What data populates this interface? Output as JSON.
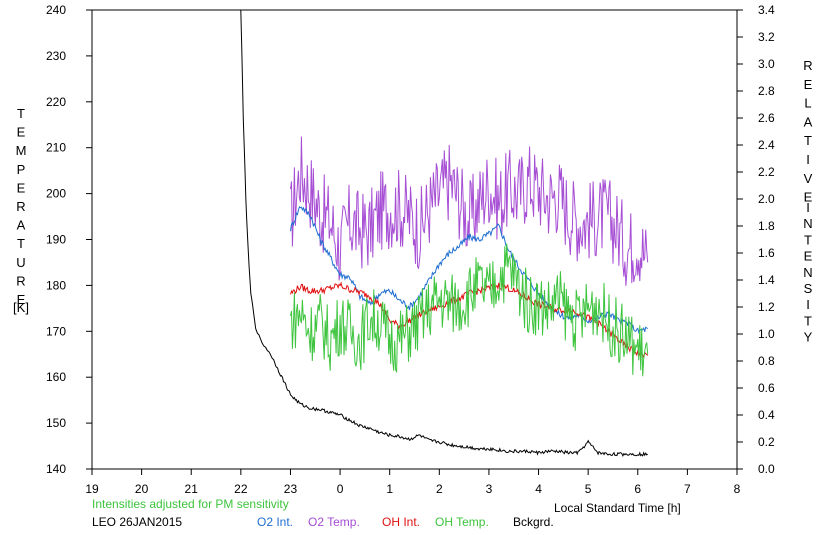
{
  "chart_data": {
    "type": "line",
    "title": "",
    "y_left": {
      "label_letters": [
        "T",
        "E",
        "M",
        "P",
        "E",
        "R",
        "A",
        "T",
        "U",
        "R",
        "E"
      ],
      "unit": "[K]",
      "range": [
        140,
        240
      ],
      "ticks": [
        "140",
        "150",
        "160",
        "170",
        "180",
        "190",
        "200",
        "210",
        "220",
        "230",
        "240"
      ]
    },
    "y_right": {
      "label_letters_1": [
        "R",
        "E",
        "L",
        "A",
        "T",
        "I",
        "V",
        "E"
      ],
      "label_letters_2": [
        "I",
        "N",
        "T",
        "E",
        "N",
        "S",
        "I",
        "T",
        "Y"
      ],
      "range": [
        0.0,
        3.4
      ],
      "ticks": [
        "0.0",
        "0.2",
        "0.4",
        "0.6",
        "0.8",
        "1.0",
        "1.2",
        "1.4",
        "1.6",
        "1.8",
        "2.0",
        "2.2",
        "2.4",
        "2.6",
        "2.8",
        "3.0",
        "3.2",
        "3.4"
      ]
    },
    "x_axis": {
      "label": "Local Standard Time [h]",
      "range": [
        19,
        32
      ],
      "ticks": [
        "19",
        "20",
        "21",
        "22",
        "23",
        "0",
        "1",
        "2",
        "3",
        "4",
        "5",
        "6",
        "7",
        "8"
      ]
    },
    "note": "Intensities adjusted for PM sensitivity",
    "station": "LEO 26JAN2015",
    "legend": [
      {
        "name": "O2 Int.",
        "color": "#1f6fd0"
      },
      {
        "name": "O2 Temp.",
        "color": "#a64ed4"
      },
      {
        "name": "OH Int.",
        "color": "#e01010"
      },
      {
        "name": "OH Temp.",
        "color": "#3ec43e"
      },
      {
        "name": "Bckgrd.",
        "color": "#000000"
      }
    ],
    "series": [
      {
        "name": "O2 Temp.",
        "axis": "left",
        "color": "#a64ed4",
        "x": [
          23.0,
          23.2,
          23.4,
          23.6,
          23.8,
          24.0,
          24.2,
          24.4,
          24.6,
          24.8,
          25.0,
          25.2,
          25.4,
          25.6,
          25.8,
          26.0,
          26.2,
          26.4,
          26.6,
          26.8,
          27.0,
          27.2,
          27.4,
          27.6,
          27.8,
          28.0,
          28.2,
          28.4,
          28.6,
          28.8,
          29.0,
          29.2,
          29.4,
          29.6,
          29.8,
          30.0,
          30.2
        ],
        "y": [
          194,
          205,
          201,
          196,
          194,
          188,
          194,
          192,
          192,
          196,
          197,
          197,
          195,
          192,
          197,
          200,
          203,
          199,
          194,
          198,
          202,
          198,
          201,
          200,
          203,
          201,
          199,
          200,
          196,
          194,
          194,
          195,
          195,
          192,
          188,
          190,
          185
        ]
      },
      {
        "name": "O2 Int.",
        "axis": "right",
        "color": "#1f6fd0",
        "x": [
          23.0,
          23.2,
          23.4,
          23.6,
          23.8,
          24.0,
          24.2,
          24.4,
          24.6,
          24.8,
          25.0,
          25.2,
          25.4,
          25.6,
          25.8,
          26.0,
          26.2,
          26.4,
          26.6,
          26.8,
          27.0,
          27.2,
          27.4,
          27.6,
          27.8,
          28.0,
          28.2,
          28.4,
          28.6,
          28.8,
          29.0,
          29.2,
          29.4,
          29.6,
          29.8,
          30.0,
          30.2
        ],
        "y": [
          1.78,
          1.95,
          1.88,
          1.7,
          1.57,
          1.44,
          1.42,
          1.28,
          1.22,
          1.3,
          1.32,
          1.25,
          1.2,
          1.28,
          1.4,
          1.52,
          1.6,
          1.65,
          1.72,
          1.7,
          1.74,
          1.8,
          1.62,
          1.5,
          1.4,
          1.3,
          1.22,
          1.15,
          1.12,
          1.14,
          1.1,
          1.12,
          1.16,
          1.1,
          1.08,
          1.02,
          1.04
        ]
      },
      {
        "name": "OH Int.",
        "axis": "right",
        "color": "#e01010",
        "x": [
          23.0,
          23.2,
          23.4,
          23.6,
          23.8,
          24.0,
          24.2,
          24.4,
          24.6,
          24.8,
          25.0,
          25.2,
          25.4,
          25.6,
          25.8,
          26.0,
          26.2,
          26.4,
          26.6,
          26.8,
          27.0,
          27.2,
          27.4,
          27.6,
          27.8,
          28.0,
          28.2,
          28.4,
          28.6,
          28.8,
          29.0,
          29.2,
          29.4,
          29.6,
          29.8,
          30.0,
          30.2
        ],
        "y": [
          1.3,
          1.35,
          1.32,
          1.32,
          1.34,
          1.36,
          1.33,
          1.31,
          1.28,
          1.22,
          1.1,
          1.06,
          1.1,
          1.14,
          1.18,
          1.2,
          1.24,
          1.26,
          1.3,
          1.32,
          1.34,
          1.36,
          1.34,
          1.3,
          1.26,
          1.22,
          1.2,
          1.18,
          1.18,
          1.16,
          1.12,
          1.08,
          1.02,
          0.96,
          0.9,
          0.86,
          0.84
        ]
      },
      {
        "name": "OH Temp.",
        "axis": "left",
        "color": "#3ec43e",
        "x": [
          23.0,
          23.2,
          23.4,
          23.6,
          23.8,
          24.0,
          24.2,
          24.4,
          24.6,
          24.8,
          25.0,
          25.2,
          25.4,
          25.6,
          25.8,
          26.0,
          26.2,
          26.4,
          26.6,
          26.8,
          27.0,
          27.2,
          27.4,
          27.6,
          27.8,
          28.0,
          28.2,
          28.4,
          28.6,
          28.8,
          29.0,
          29.2,
          29.4,
          29.6,
          29.8,
          30.0,
          30.2
        ],
        "y": [
          172,
          174,
          170,
          172,
          168,
          172,
          170,
          168,
          173,
          172,
          168,
          168,
          170,
          172,
          175,
          177,
          176,
          176,
          178,
          180,
          178,
          182,
          184,
          180,
          176,
          176,
          175,
          177,
          174,
          172,
          175,
          176,
          172,
          170,
          168,
          166,
          165
        ]
      },
      {
        "name": "Bckgrd.",
        "axis": "right",
        "color": "#000000",
        "x": [
          22.0,
          22.05,
          22.1,
          22.15,
          22.2,
          22.3,
          22.4,
          22.5,
          22.6,
          22.8,
          23.0,
          23.2,
          23.4,
          23.6,
          23.8,
          24.0,
          24.2,
          24.4,
          24.6,
          24.8,
          25.0,
          25.2,
          25.4,
          25.6,
          25.8,
          26.0,
          26.2,
          26.4,
          26.6,
          26.8,
          27.0,
          27.2,
          27.4,
          27.6,
          27.8,
          28.0,
          28.2,
          28.4,
          28.6,
          28.8,
          29.0,
          29.2,
          29.4,
          29.6,
          29.8,
          30.0,
          30.2
        ],
        "y": [
          3.4,
          2.6,
          2.0,
          1.6,
          1.3,
          1.05,
          0.95,
          0.9,
          0.85,
          0.7,
          0.55,
          0.48,
          0.45,
          0.44,
          0.42,
          0.4,
          0.36,
          0.32,
          0.3,
          0.27,
          0.25,
          0.24,
          0.22,
          0.25,
          0.21,
          0.2,
          0.18,
          0.17,
          0.16,
          0.15,
          0.15,
          0.14,
          0.13,
          0.13,
          0.13,
          0.12,
          0.13,
          0.13,
          0.12,
          0.12,
          0.2,
          0.12,
          0.11,
          0.11,
          0.11,
          0.11,
          0.11
        ]
      }
    ]
  }
}
